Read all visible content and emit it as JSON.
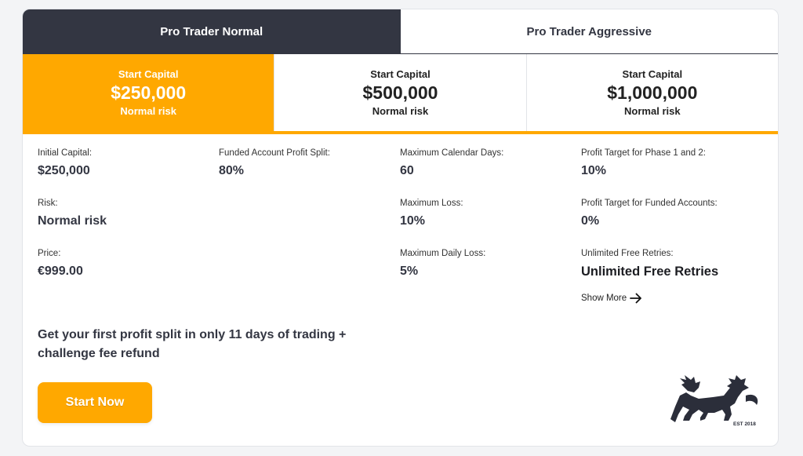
{
  "tabs": [
    {
      "label": "Pro Trader Normal",
      "active": true
    },
    {
      "label": "Pro Trader Aggressive",
      "active": false
    }
  ],
  "capitals": [
    {
      "label": "Start Capital",
      "amount": "$250,000",
      "risk": "Normal risk",
      "active": true
    },
    {
      "label": "Start Capital",
      "amount": "$500,000",
      "risk": "Normal risk",
      "active": false
    },
    {
      "label": "Start Capital",
      "amount": "$1,000,000",
      "risk": "Normal risk",
      "active": false
    }
  ],
  "details": {
    "initial_capital": {
      "label": "Initial Capital:",
      "value": "$250,000"
    },
    "risk": {
      "label": "Risk:",
      "value": "Normal risk"
    },
    "price": {
      "label": "Price:",
      "value": "€999.00"
    },
    "profit_split": {
      "label": "Funded Account Profit Split:",
      "value": "80%"
    },
    "max_calendar_days": {
      "label": "Maximum Calendar Days:",
      "value": "60"
    },
    "max_loss": {
      "label": "Maximum Loss:",
      "value": "10%"
    },
    "max_daily_loss": {
      "label": "Maximum Daily Loss:",
      "value": "5%"
    },
    "profit_target_phase": {
      "label": "Profit Target for Phase 1 and 2:",
      "value": "10%"
    },
    "profit_target_funded": {
      "label": "Profit Target for Funded Accounts:",
      "value": "0%"
    },
    "free_retries": {
      "label": "Unlimited Free Retries:",
      "value": "Unlimited Free Retries"
    }
  },
  "show_more": "Show More",
  "promo_text": "Get your first profit split in only 11 days of trading + challenge fee refund",
  "start_button": "Start Now",
  "logo_text": "EST 2018",
  "colors": {
    "accent": "#ffa800",
    "dark": "#333642"
  }
}
